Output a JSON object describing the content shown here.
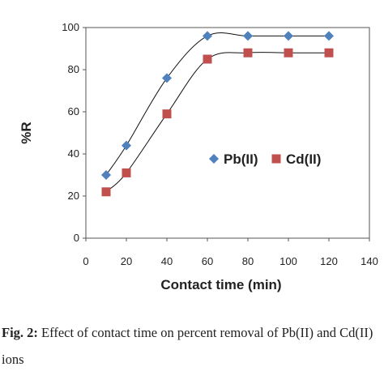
{
  "chart_data": {
    "type": "scatter",
    "xlabel": "Contact time (min)",
    "ylabel": "%R",
    "xlim": [
      0,
      140
    ],
    "ylim": [
      0,
      100
    ],
    "xticks": [
      0,
      20,
      40,
      60,
      80,
      100,
      120,
      140
    ],
    "yticks": [
      0,
      20,
      40,
      60,
      80,
      100
    ],
    "grid": false,
    "legend_position": "center-right",
    "trendline": "smooth polynomial fit per series",
    "series": [
      {
        "name": "Pb(II)",
        "marker": "diamond",
        "color": "#4f81bd",
        "x": [
          10,
          20,
          40,
          60,
          80,
          100,
          120
        ],
        "y": [
          30,
          44,
          76,
          96,
          96,
          96,
          96
        ]
      },
      {
        "name": "Cd(II)",
        "marker": "square",
        "color": "#c0504d",
        "x": [
          10,
          20,
          40,
          60,
          80,
          100,
          120
        ],
        "y": [
          22,
          31,
          59,
          85,
          88,
          88,
          88
        ]
      }
    ]
  },
  "caption": {
    "label": "Fig. 2:",
    "text": " Effect of contact time on percent removal of Pb(II) and Cd(II) ions"
  }
}
